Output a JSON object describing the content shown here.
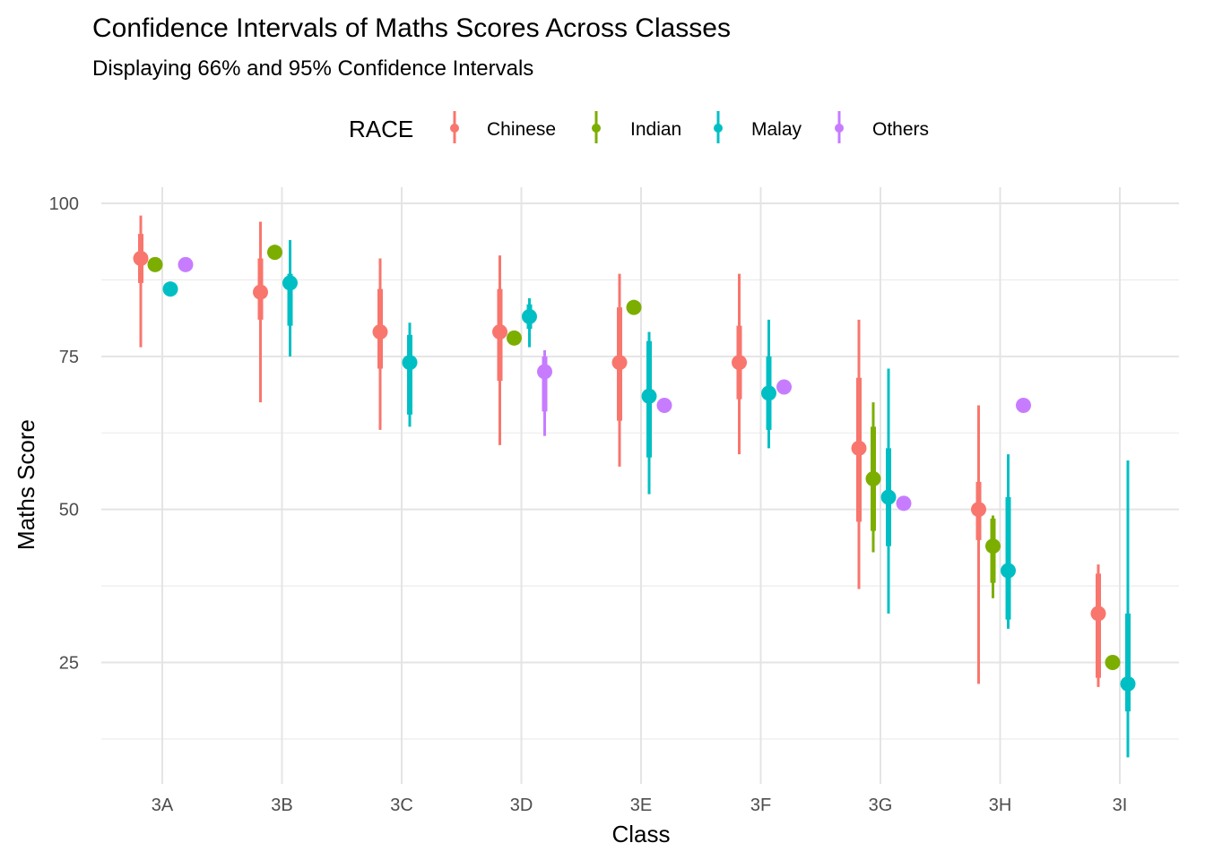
{
  "chart_data": {
    "type": "pointrange",
    "title": "Confidence Intervals of Maths Scores Across Classes",
    "subtitle": "Displaying 66% and 95% Confidence Intervals",
    "xlabel": "Class",
    "ylabel": "Maths Score",
    "ylim": [
      10,
      100
    ],
    "yticks": [
      25,
      50,
      75,
      100
    ],
    "grid": true,
    "legend": {
      "title": "RACE",
      "position": "top"
    },
    "categories": [
      "3A",
      "3B",
      "3C",
      "3D",
      "3E",
      "3F",
      "3G",
      "3H",
      "3I"
    ],
    "series": [
      {
        "name": "Chinese",
        "color": "#F8766D",
        "points": [
          {
            "x": "3A",
            "y": 91,
            "ci66": [
              87,
              95
            ],
            "ci95": [
              76.5,
              98
            ]
          },
          {
            "x": "3B",
            "y": 85.5,
            "ci66": [
              81,
              91
            ],
            "ci95": [
              67.5,
              97
            ]
          },
          {
            "x": "3C",
            "y": 79,
            "ci66": [
              73,
              86
            ],
            "ci95": [
              63,
              91
            ]
          },
          {
            "x": "3D",
            "y": 79,
            "ci66": [
              71,
              86
            ],
            "ci95": [
              60.5,
              91.5
            ]
          },
          {
            "x": "3E",
            "y": 74,
            "ci66": [
              64.5,
              83
            ],
            "ci95": [
              57,
              88.5
            ]
          },
          {
            "x": "3F",
            "y": 74,
            "ci66": [
              68,
              80
            ],
            "ci95": [
              59,
              88.5
            ]
          },
          {
            "x": "3G",
            "y": 60,
            "ci66": [
              48,
              71.5
            ],
            "ci95": [
              37,
              81
            ]
          },
          {
            "x": "3H",
            "y": 50,
            "ci66": [
              45,
              54.5
            ],
            "ci95": [
              21.5,
              67
            ]
          },
          {
            "x": "3I",
            "y": 33,
            "ci66": [
              22.5,
              39.5
            ],
            "ci95": [
              21,
              41
            ]
          }
        ]
      },
      {
        "name": "Indian",
        "color": "#7CAE00",
        "points": [
          {
            "x": "3A",
            "y": 90
          },
          {
            "x": "3B",
            "y": 92
          },
          {
            "x": "3D",
            "y": 78
          },
          {
            "x": "3E",
            "y": 83
          },
          {
            "x": "3G",
            "y": 55,
            "ci66": [
              46.5,
              63.5
            ],
            "ci95": [
              43,
              67.5
            ]
          },
          {
            "x": "3H",
            "y": 44,
            "ci66": [
              38,
              48.5
            ],
            "ci95": [
              35.5,
              49
            ]
          },
          {
            "x": "3I",
            "y": 25
          }
        ]
      },
      {
        "name": "Malay",
        "color": "#00BFC4",
        "points": [
          {
            "x": "3A",
            "y": 86
          },
          {
            "x": "3B",
            "y": 87,
            "ci66": [
              80,
              88.5
            ],
            "ci95": [
              75,
              94
            ]
          },
          {
            "x": "3C",
            "y": 74,
            "ci66": [
              65.5,
              78.5
            ],
            "ci95": [
              63.5,
              80.5
            ]
          },
          {
            "x": "3D",
            "y": 81.5,
            "ci66": [
              79.5,
              83.5
            ],
            "ci95": [
              76.5,
              84.5
            ]
          },
          {
            "x": "3E",
            "y": 68.5,
            "ci66": [
              58.5,
              77.5
            ],
            "ci95": [
              52.5,
              79
            ]
          },
          {
            "x": "3F",
            "y": 69,
            "ci66": [
              63,
              75
            ],
            "ci95": [
              60,
              81
            ]
          },
          {
            "x": "3G",
            "y": 52,
            "ci66": [
              44,
              60
            ],
            "ci95": [
              33,
              73
            ]
          },
          {
            "x": "3H",
            "y": 40,
            "ci66": [
              32,
              52
            ],
            "ci95": [
              30.5,
              59
            ]
          },
          {
            "x": "3I",
            "y": 21.5,
            "ci66": [
              17,
              33
            ],
            "ci95": [
              9.5,
              58
            ]
          }
        ]
      },
      {
        "name": "Others",
        "color": "#C77CFF",
        "points": [
          {
            "x": "3A",
            "y": 90
          },
          {
            "x": "3D",
            "y": 72.5,
            "ci66": [
              66,
              75
            ],
            "ci95": [
              62,
              76
            ]
          },
          {
            "x": "3E",
            "y": 67
          },
          {
            "x": "3F",
            "y": 70
          },
          {
            "x": "3G",
            "y": 51
          },
          {
            "x": "3H",
            "y": 67
          }
        ]
      }
    ]
  }
}
